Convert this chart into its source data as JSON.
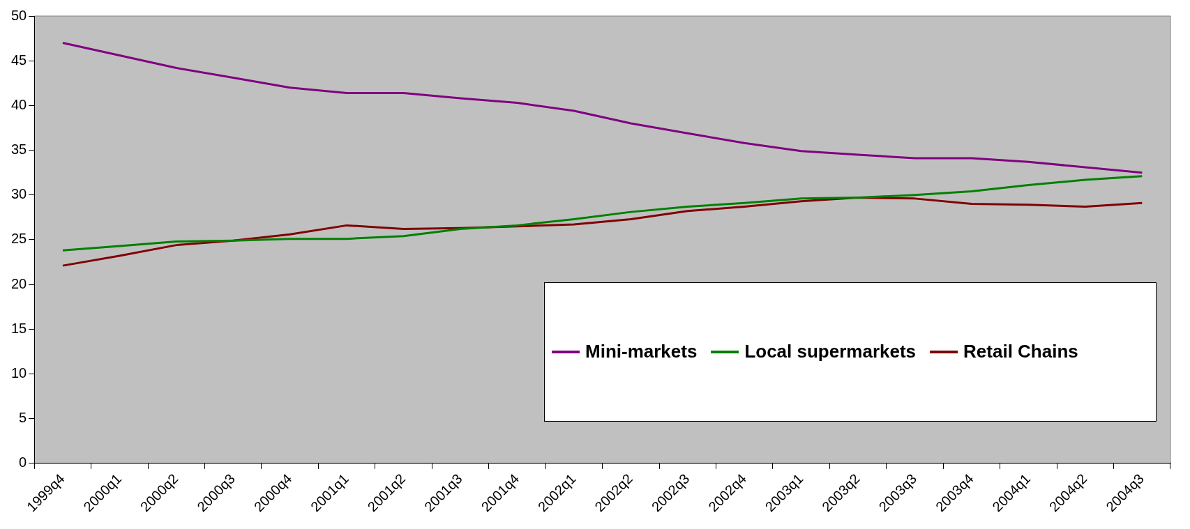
{
  "chart_data": {
    "type": "line",
    "categories": [
      "1999q4",
      "2000q1",
      "2000q2",
      "2000q3",
      "2000q4",
      "2001q1",
      "2001q2",
      "2001q3",
      "2001q4",
      "2002q1",
      "2002q2",
      "2002q3",
      "2002q4",
      "2003q1",
      "2003q2",
      "2003q3",
      "2003q4",
      "2004q1",
      "2004q2",
      "2004q3"
    ],
    "series": [
      {
        "name": "Mini-markets",
        "color": "#800080",
        "values": [
          47.0,
          45.6,
          44.2,
          43.1,
          42.0,
          41.4,
          41.4,
          40.8,
          40.3,
          39.4,
          38.0,
          36.9,
          35.8,
          34.9,
          34.5,
          34.1,
          34.1,
          33.7,
          33.1,
          32.5
        ]
      },
      {
        "name": "Local supermarkets",
        "color": "#008000",
        "values": [
          23.8,
          24.3,
          24.8,
          24.9,
          25.1,
          25.1,
          25.4,
          26.2,
          26.6,
          27.3,
          28.1,
          28.7,
          29.1,
          29.6,
          29.7,
          30.0,
          30.4,
          31.1,
          31.7,
          32.1
        ]
      },
      {
        "name": "Retail Chains",
        "color": "#800000",
        "values": [
          22.1,
          23.2,
          24.4,
          24.9,
          25.6,
          26.6,
          26.2,
          26.3,
          26.5,
          26.7,
          27.3,
          28.2,
          28.7,
          29.3,
          29.7,
          29.6,
          29.0,
          28.9,
          28.7,
          29.1
        ]
      }
    ],
    "ylim": [
      0,
      50
    ],
    "yticks": [
      0,
      5,
      10,
      15,
      20,
      25,
      30,
      35,
      40,
      45,
      50
    ],
    "grid": false,
    "legend": "bottom right",
    "marker": "none",
    "line_style": "solid"
  }
}
